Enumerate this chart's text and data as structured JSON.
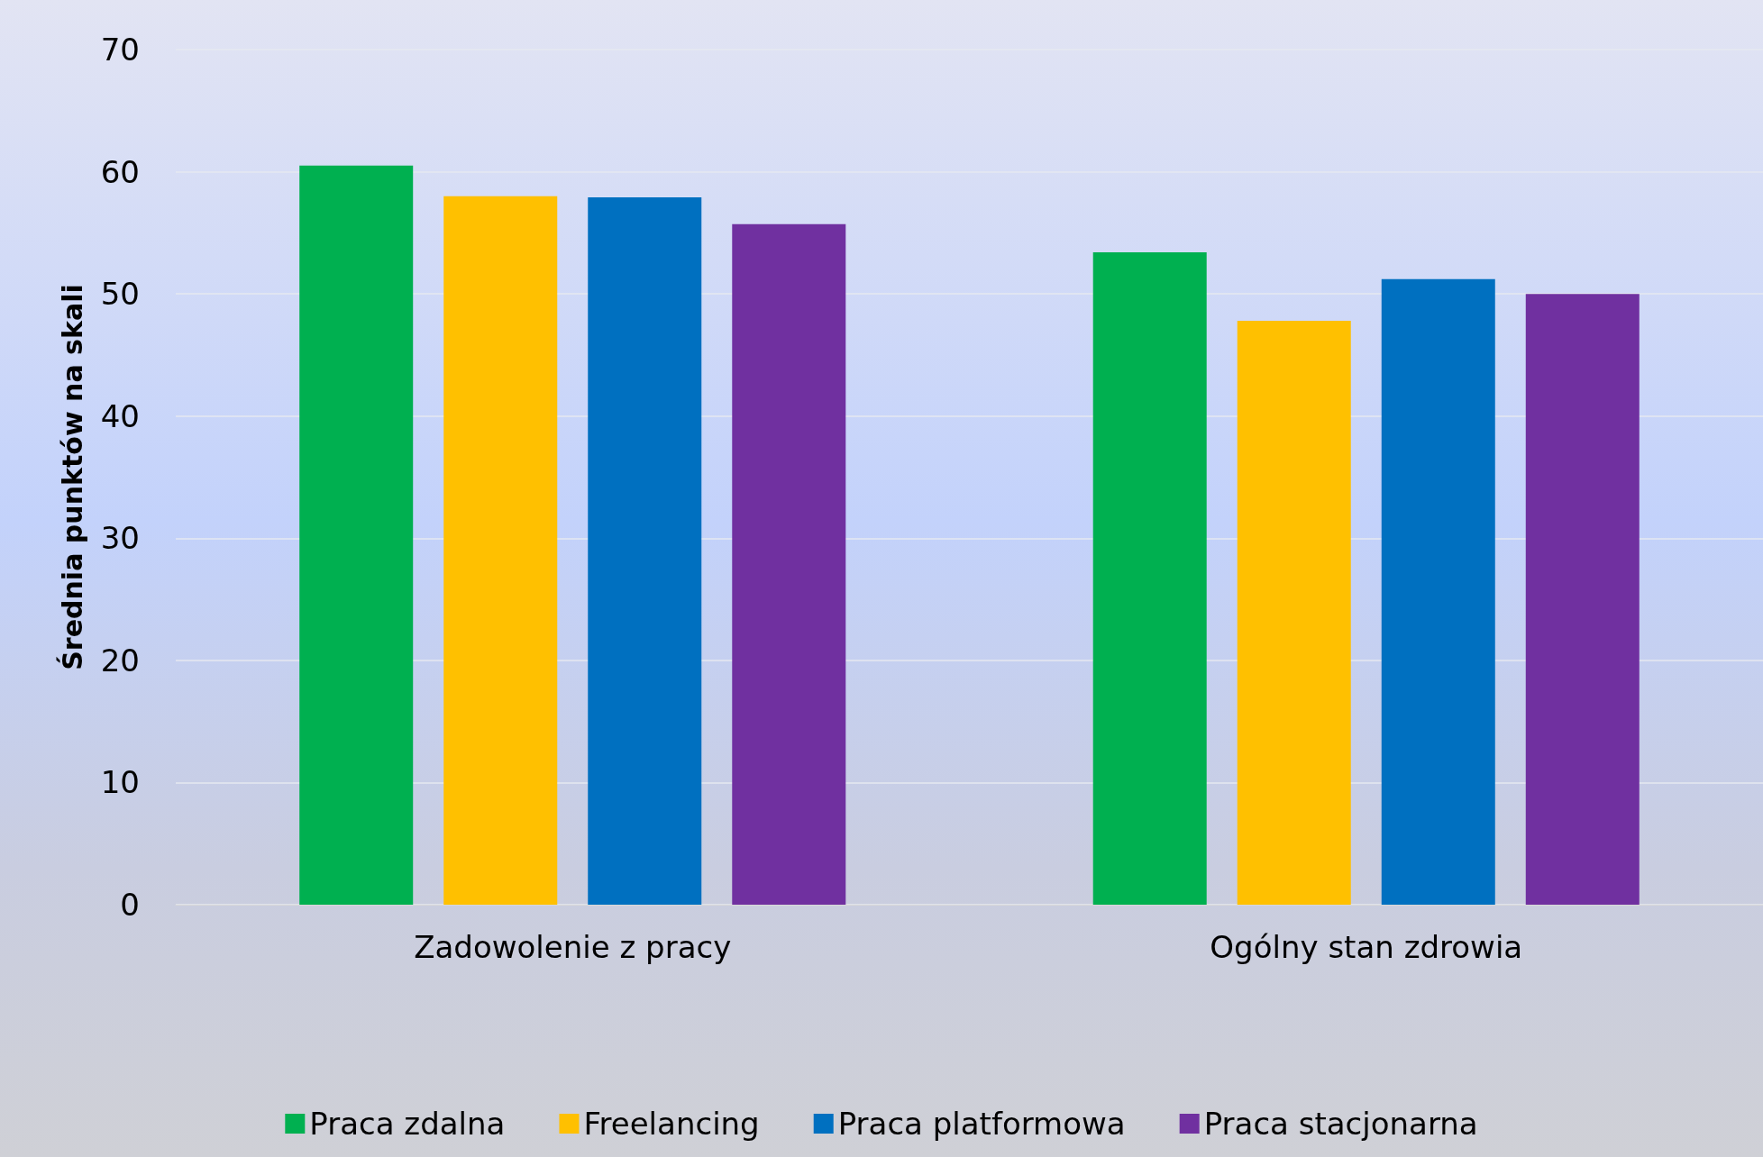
{
  "chart_data": {
    "type": "bar",
    "ylabel": "Średnia punktów na skali",
    "categories": [
      "Zadowolenie z pracy",
      "Ogólny stan zdrowia"
    ],
    "series": [
      {
        "name": "Praca zdalna",
        "color": "#00b050",
        "values": [
          60.5,
          53.4
        ]
      },
      {
        "name": "Freelancing",
        "color": "#ffc000",
        "values": [
          58.0,
          47.8
        ]
      },
      {
        "name": "Praca platformowa",
        "color": "#0070c0",
        "values": [
          57.9,
          51.2
        ]
      },
      {
        "name": "Praca stacjonarna",
        "color": "#7030a0",
        "values": [
          55.7,
          50.0
        ]
      }
    ],
    "ylim": [
      0,
      70
    ],
    "yticks": [
      0,
      10,
      20,
      30,
      40,
      50,
      60,
      70
    ],
    "grid": "y",
    "legend": "bottom"
  }
}
